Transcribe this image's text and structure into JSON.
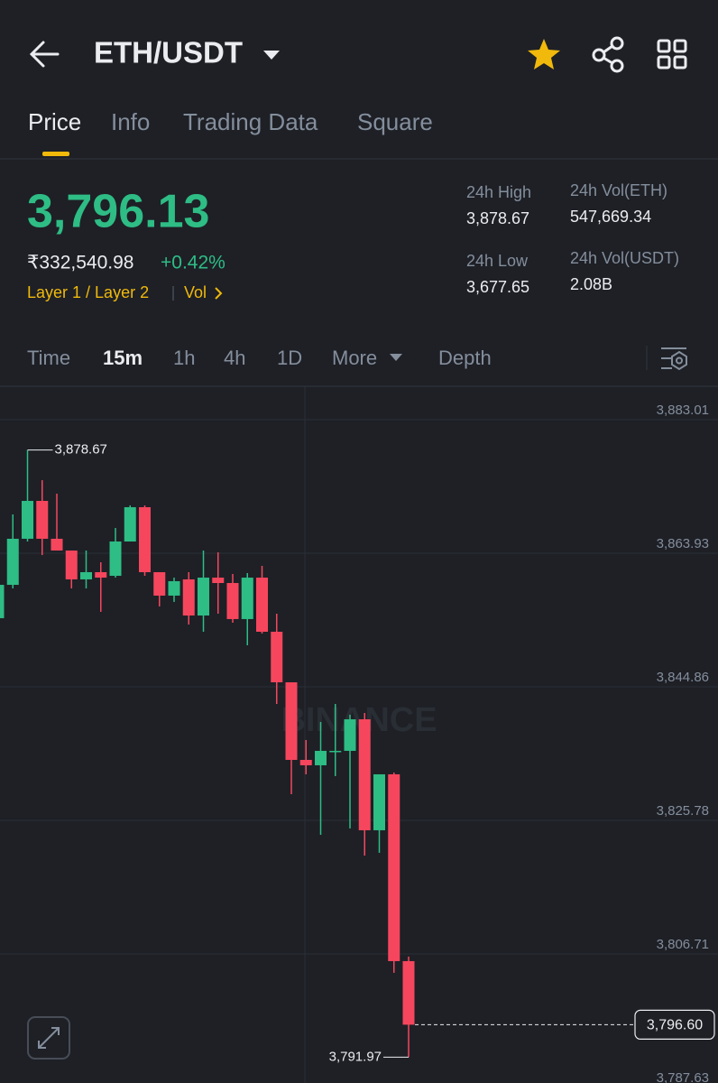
{
  "header": {
    "title": "ETH/USDT"
  },
  "tabs": [
    "Price",
    "Info",
    "Trading Data",
    "Square"
  ],
  "ticker": {
    "last_price": "3,796.13",
    "local_price": "₹332,540.98",
    "change": "+0.42%",
    "tags": "Layer 1 / Layer 2",
    "vol_link": "Vol"
  },
  "stats": [
    {
      "label": "24h High",
      "value": "3,878.67"
    },
    {
      "label": "24h Vol(ETH)",
      "value": "547,669.34"
    },
    {
      "label": "24h Low",
      "value": "3,677.65"
    },
    {
      "label": "24h Vol(USDT)",
      "value": "2.08B"
    }
  ],
  "intervals": [
    "Time",
    "15m",
    "1h",
    "4h",
    "1D",
    "More",
    "Depth"
  ],
  "chart_data": {
    "type": "candlestick",
    "open": [
      3854.66,
      3859.42,
      3866.0,
      3871.41,
      3866.0,
      3864.32,
      3860.2,
      3861.23,
      3860.71,
      3865.61,
      3870.51,
      3861.23,
      3857.88,
      3860.2,
      3855.04,
      3860.45,
      3859.68,
      3854.53,
      3860.45,
      3852.72,
      3845.5,
      3834.42,
      3833.65,
      3835.71,
      3835.71,
      3840.22,
      3824.37,
      3832.36,
      3805.68
    ],
    "high": [
      3863.03,
      3869.48,
      3878.67,
      3874.37,
      3872.44,
      3864.32,
      3864.32,
      3862.64,
      3867.54,
      3870.77,
      3870.77,
      3861.23,
      3860.45,
      3861.23,
      3864.32,
      3864.06,
      3860.97,
      3861.1,
      3862.13,
      3855.3,
      3845.5,
      3837.26,
      3839.83,
      3842.41,
      3840.87,
      3841.12,
      3832.36,
      3832.62,
      3806.33
    ],
    "low": [
      3854.01,
      3858.91,
      3865.61,
      3863.68,
      3864.32,
      3858.91,
      3858.91,
      3855.56,
      3860.45,
      3865.61,
      3860.71,
      3856.33,
      3856.98,
      3853.75,
      3852.72,
      3855.3,
      3854.01,
      3850.79,
      3852.46,
      3842.41,
      3829.52,
      3832.36,
      3823.72,
      3832.1,
      3824.63,
      3820.76,
      3821.15,
      3804.01,
      3791.97
    ],
    "close": [
      3859.42,
      3866.0,
      3871.41,
      3866.0,
      3864.32,
      3860.2,
      3861.23,
      3860.45,
      3865.61,
      3870.51,
      3861.23,
      3857.88,
      3859.94,
      3855.04,
      3860.45,
      3859.68,
      3854.53,
      3860.45,
      3852.72,
      3845.5,
      3834.42,
      3833.65,
      3835.71,
      3835.71,
      3840.22,
      3824.37,
      3832.36,
      3805.68,
      3796.6
    ],
    "up_color": "#2ebd85",
    "down_color": "#f6465d",
    "ylim": [
      3787.5,
      3887.78
    ],
    "yticks": [
      {
        "value": 3883.01,
        "label": "3,883.01"
      },
      {
        "value": 3863.93,
        "label": "3,863.93"
      },
      {
        "value": 3844.86,
        "label": "3,844.86"
      },
      {
        "value": 3825.78,
        "label": "3,825.78"
      },
      {
        "value": 3806.71,
        "label": "3,806.71"
      },
      {
        "value": 3787.63,
        "label": "3,787.63"
      }
    ],
    "grid": true,
    "high_marker": {
      "value": 3878.67,
      "label": "3,878.67"
    },
    "low_marker": {
      "value": 3791.97,
      "label": "3,791.97"
    },
    "last_price_marker": {
      "value": 3796.6,
      "label": "3,796.60"
    },
    "watermark": "BINANCE"
  }
}
